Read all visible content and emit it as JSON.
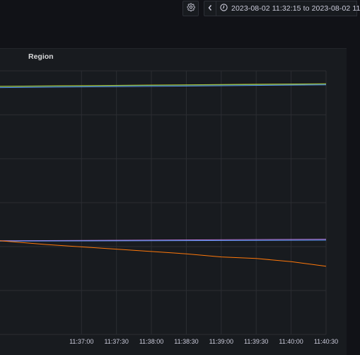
{
  "toolbar": {
    "settings_icon": "gear-icon",
    "prev_icon": "chevron-left-icon",
    "clock_icon": "clock-icon",
    "time_range": "2023-08-02 11:32:15 to 2023-08-02 11"
  },
  "panel": {
    "title": "Region"
  },
  "colors": {
    "background": "#111217",
    "panel": "#181b1f",
    "grid": "#2b2d32",
    "green": "#73bf69",
    "yellow": "#f2cc0c",
    "blue": "#5794f2",
    "purple": "#b877d9",
    "orange": "#ff780a"
  },
  "chart_data": {
    "type": "line",
    "x_ticks": [
      "11:37:00",
      "11:37:30",
      "11:38:00",
      "11:38:30",
      "11:39:00",
      "11:39:30",
      "11:40:00",
      "11:40:30"
    ],
    "series": [
      {
        "color": "#f2cc0c",
        "x": [
          "11:35:50",
          "11:40:30"
        ],
        "y": [
          0.9505,
          0.9585
        ]
      },
      {
        "color": "#73bf69",
        "x": [
          "11:35:50",
          "11:40:30"
        ],
        "y": [
          0.9495,
          0.9575
        ]
      },
      {
        "color": "#5794f2",
        "x": [
          "11:35:50",
          "11:40:30"
        ],
        "y": [
          0.946,
          0.955
        ]
      },
      {
        "color": "#b877d9",
        "x": [
          "11:35:50",
          "11:40:30"
        ],
        "y": [
          0.452,
          0.457
        ]
      },
      {
        "color": "#5794f2",
        "x": [
          "11:35:50",
          "11:40:30"
        ],
        "y": [
          0.451,
          0.454
        ]
      },
      {
        "color": "#ff780a",
        "x": [
          "11:35:50",
          "11:36:30",
          "11:37:30",
          "11:38:30",
          "11:39:00",
          "11:39:30",
          "11:40:00",
          "11:40:30"
        ],
        "y": [
          0.452,
          0.44,
          0.425,
          0.41,
          0.4,
          0.395,
          0.385,
          0.37
        ]
      }
    ],
    "xlim": [
      "11:35:50",
      "11:40:30"
    ],
    "ylim": [
      0.15,
      1.0
    ],
    "grid": true
  }
}
